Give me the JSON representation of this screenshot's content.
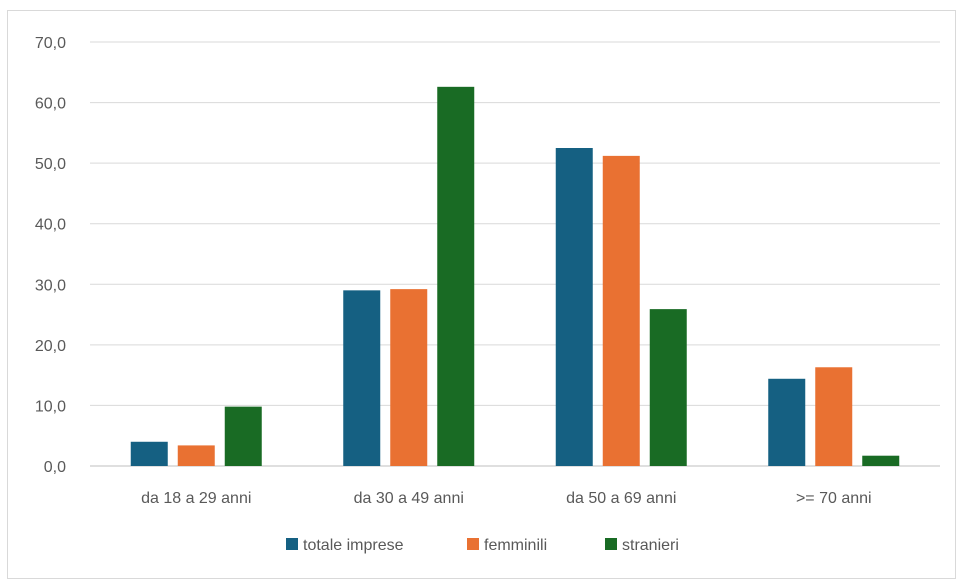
{
  "chart_data": {
    "type": "bar",
    "title": "",
    "xlabel": "",
    "ylabel": "",
    "categories": [
      "da 18 a 29 anni",
      "da 30 a 49 anni",
      "da 50 a 69 anni",
      ">= 70 anni"
    ],
    "series": [
      {
        "name": "totale imprese",
        "color": "#156082",
        "values": [
          4.0,
          29.0,
          52.5,
          14.4
        ]
      },
      {
        "name": "femminili",
        "color": "#E97132",
        "values": [
          3.4,
          29.2,
          51.2,
          16.3
        ]
      },
      {
        "name": "stranieri",
        "color": "#196B24",
        "values": [
          9.8,
          62.6,
          25.9,
          1.7
        ]
      }
    ],
    "ylim": [
      0,
      70
    ],
    "yticks": [
      "0,0",
      "10,0",
      "20,0",
      "30,0",
      "40,0",
      "50,0",
      "60,0",
      "70,0"
    ],
    "grid": true,
    "legend": "bottom"
  }
}
